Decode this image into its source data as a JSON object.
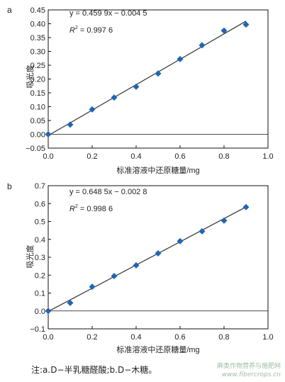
{
  "chart_data": [
    {
      "type": "scatter",
      "panel": "a",
      "xlabel": "标准溶液中还原糖量/mg",
      "ylabel": "吸光度",
      "xlim": [
        0.0,
        1.0
      ],
      "ylim": [
        -0.05,
        0.45
      ],
      "x_ticks": [
        "0.0",
        "0.2",
        "0.4",
        "0.6",
        "0.8",
        "1.0"
      ],
      "y_ticks": [
        "-0.05",
        "0.00",
        "0.05",
        "0.10",
        "0.15",
        "0.20",
        "0.25",
        "0.30",
        "0.35",
        "0.40",
        "0.45"
      ],
      "equation": "y = 0.459 9x − 0.004 5",
      "r2_label": "R",
      "r2_value": "= 0.997 6",
      "fit": {
        "slope": 0.4599,
        "intercept": -0.0045
      },
      "series": [
        {
          "x": [
            0.0,
            0.1,
            0.2,
            0.3,
            0.4,
            0.5,
            0.6,
            0.7,
            0.8,
            0.9
          ],
          "y": [
            0.0,
            0.035,
            0.09,
            0.133,
            0.172,
            0.22,
            0.272,
            0.322,
            0.375,
            0.397
          ]
        }
      ],
      "grid": false
    },
    {
      "type": "scatter",
      "panel": "b",
      "xlabel": "标准溶液中还原糖量/mg",
      "ylabel": "吸光度",
      "xlim": [
        0.0,
        1.0
      ],
      "ylim": [
        -0.1,
        0.7
      ],
      "x_ticks": [
        "0.0",
        "0.2",
        "0.4",
        "0.6",
        "0.8",
        "1.0"
      ],
      "y_ticks": [
        "-0.1",
        "0.0",
        "0.1",
        "0.2",
        "0.3",
        "0.4",
        "0.5",
        "0.6",
        "0.7"
      ],
      "equation": "y = 0.648 5x − 0.002 8",
      "r2_label": "R",
      "r2_value": "= 0.998 6",
      "fit": {
        "slope": 0.6485,
        "intercept": -0.0028
      },
      "series": [
        {
          "x": [
            0.0,
            0.1,
            0.2,
            0.3,
            0.4,
            0.5,
            0.6,
            0.7,
            0.8,
            0.9
          ],
          "y": [
            0.0,
            0.045,
            0.135,
            0.195,
            0.255,
            0.322,
            0.39,
            0.445,
            0.505,
            0.58
          ]
        }
      ],
      "grid": false
    }
  ],
  "note": "注:a.D−半乳糖醛酸;b.D−木糖。",
  "watermark": {
    "line1": "麻类作物营养与施肥网",
    "line2": "www.fibercrops.cn"
  },
  "colors": {
    "marker": "#1e66b4",
    "line": "#333333",
    "axis": "#111111"
  }
}
